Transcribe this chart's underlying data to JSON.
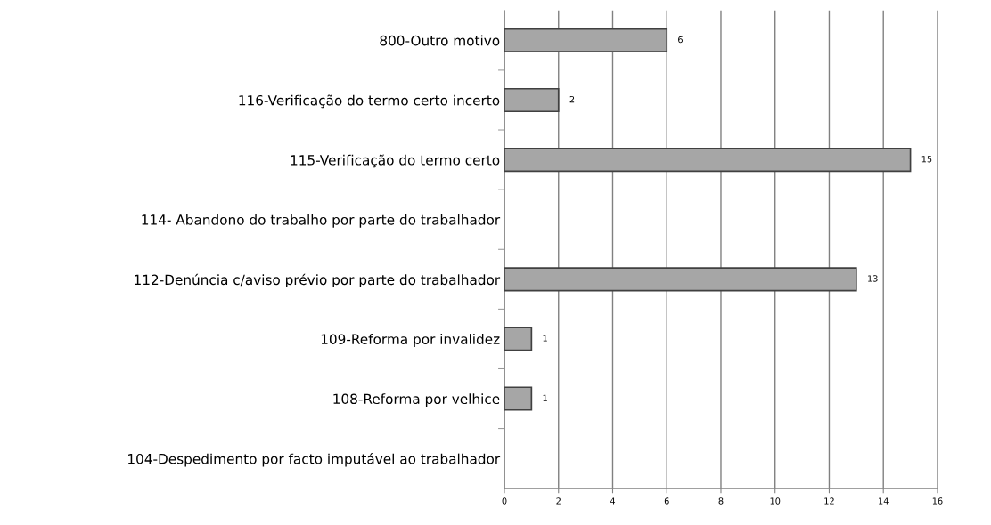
{
  "chart_data": {
    "type": "bar",
    "orientation": "horizontal",
    "categories": [
      "800-Outro motivo",
      "116-Verificação do termo certo incerto",
      "115-Verificação do termo certo",
      "114- Abandono do trabalho por parte do trabalhador",
      "112-Denúncia c/aviso prévio por parte do trabalhador",
      "109-Reforma por invalidez",
      "108-Reforma por velhice",
      "104-Despedimento por facto imputável ao trabalhador"
    ],
    "values": [
      6,
      2,
      15,
      null,
      13,
      1,
      1,
      null
    ],
    "value_labels": [
      "6",
      "2",
      "15",
      null,
      "13",
      "1",
      "1",
      null
    ],
    "color": "#a6a6a6",
    "xlim": [
      0,
      16
    ],
    "xticks": [
      0,
      2,
      4,
      6,
      8,
      10,
      12,
      14,
      16
    ],
    "grid": "x"
  }
}
